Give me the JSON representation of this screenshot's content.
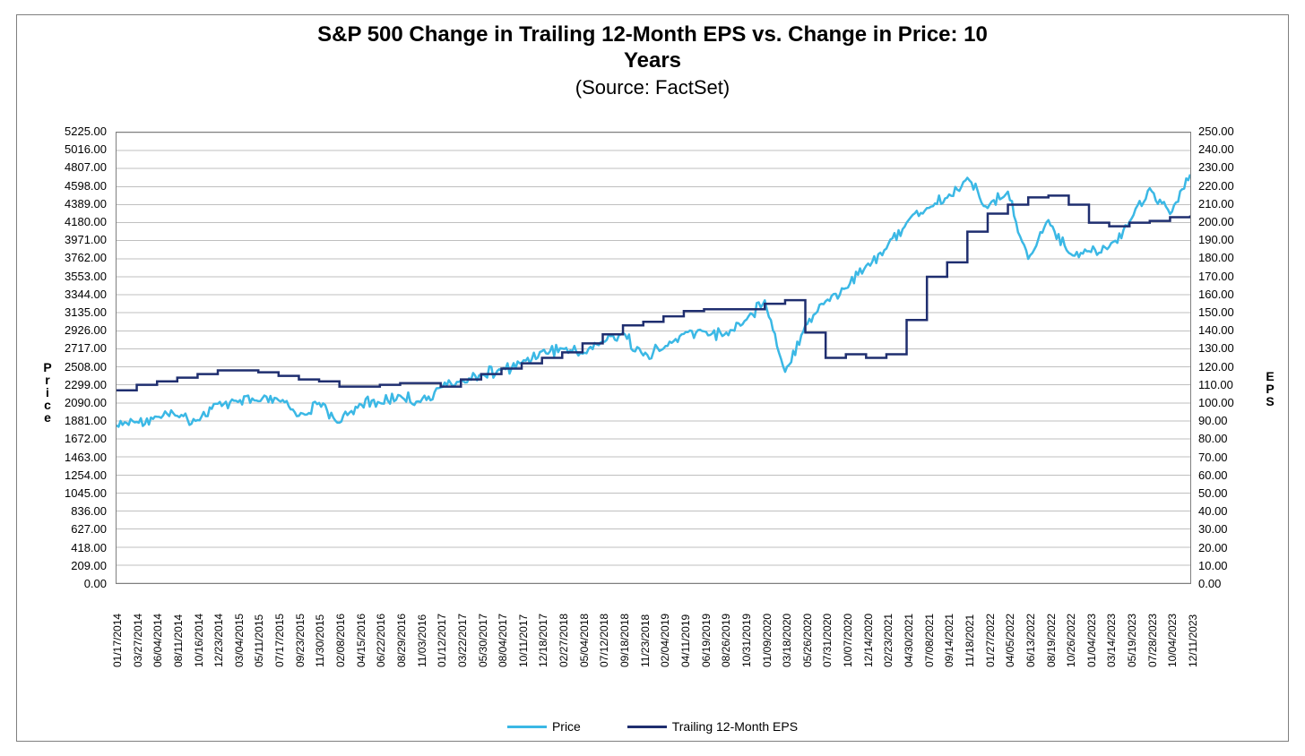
{
  "chart": {
    "type": "line-dual-axis",
    "title_line1": "S&P 500 Change in Trailing 12-Month EPS vs. Change in Price: 10",
    "title_line2": "Years",
    "subtitle": "(Source: FactSet)",
    "title_fontsize": 24,
    "title_fontweight": "bold",
    "subtitle_fontsize": 22,
    "background_color": "#ffffff",
    "border_color": "#7f7f7f",
    "grid_color": "#bfbfbf",
    "axis_label_color": "#000000",
    "tick_fontsize": 13,
    "xtick_fontsize": 12,
    "y_left": {
      "title": "Price",
      "min": 0.0,
      "max": 5225.0,
      "step": 209.0,
      "ticks": [
        "0.00",
        "209.00",
        "418.00",
        "627.00",
        "836.00",
        "1045.00",
        "1254.00",
        "1463.00",
        "1672.00",
        "1881.00",
        "2090.00",
        "2299.00",
        "2508.00",
        "2717.00",
        "2926.00",
        "3135.00",
        "3344.00",
        "3553.00",
        "3762.00",
        "3971.00",
        "4180.00",
        "4389.00",
        "4598.00",
        "4807.00",
        "5016.00",
        "5225.00"
      ]
    },
    "y_right": {
      "title": "EPS",
      "min": 0.0,
      "max": 250.0,
      "step": 10.0,
      "ticks": [
        "0.00",
        "10.00",
        "20.00",
        "30.00",
        "40.00",
        "50.00",
        "60.00",
        "70.00",
        "80.00",
        "90.00",
        "100.00",
        "110.00",
        "120.00",
        "130.00",
        "140.00",
        "150.00",
        "160.00",
        "170.00",
        "180.00",
        "190.00",
        "200.00",
        "210.00",
        "220.00",
        "230.00",
        "240.00",
        "250.00"
      ]
    },
    "x_categories": [
      "01/17/2014",
      "03/27/2014",
      "06/04/2014",
      "08/11/2014",
      "10/16/2014",
      "12/23/2014",
      "03/04/2015",
      "05/11/2015",
      "07/17/2015",
      "09/23/2015",
      "11/30/2015",
      "02/08/2016",
      "04/15/2016",
      "06/22/2016",
      "08/29/2016",
      "11/03/2016",
      "01/12/2017",
      "03/22/2017",
      "05/30/2017",
      "08/04/2017",
      "10/11/2017",
      "12/18/2017",
      "02/27/2018",
      "05/04/2018",
      "07/12/2018",
      "09/18/2018",
      "11/23/2018",
      "02/04/2019",
      "04/11/2019",
      "06/19/2019",
      "08/26/2019",
      "10/31/2019",
      "01/09/2020",
      "03/18/2020",
      "05/26/2020",
      "07/31/2020",
      "10/07/2020",
      "12/14/2020",
      "02/23/2021",
      "04/30/2021",
      "07/08/2021",
      "09/14/2021",
      "11/18/2021",
      "01/27/2022",
      "04/05/2022",
      "06/13/2022",
      "08/19/2022",
      "10/26/2022",
      "01/04/2023",
      "03/14/2023",
      "05/19/2023",
      "07/28/2023",
      "10/04/2023",
      "12/11/2023"
    ],
    "series": {
      "price": {
        "label": "Price",
        "color": "#3bb8e5",
        "line_width": 2.5,
        "axis": "left",
        "line_style": "jagged",
        "data": [
          1830,
          1870,
          1930,
          1940,
          1890,
          2080,
          2100,
          2110,
          2120,
          1940,
          2090,
          1860,
          2080,
          2090,
          2175,
          2100,
          2270,
          2350,
          2410,
          2470,
          2555,
          2690,
          2720,
          2660,
          2800,
          2900,
          2640,
          2720,
          2890,
          2920,
          2880,
          3040,
          3280,
          2450,
          2990,
          3270,
          3420,
          3680,
          3880,
          4180,
          4350,
          4470,
          4700,
          4350,
          4540,
          3760,
          4210,
          3830,
          3850,
          3900,
          4190,
          4580,
          4280,
          4740
        ]
      },
      "eps": {
        "label": "Trailing 12-Month EPS",
        "color": "#1f2e6f",
        "line_width": 2.5,
        "axis": "right",
        "line_style": "step",
        "data": [
          107,
          110,
          112,
          114,
          116,
          118,
          118,
          117,
          115,
          113,
          112,
          109,
          109,
          110,
          111,
          111,
          109,
          113,
          116,
          119,
          122,
          125,
          128,
          133,
          138,
          143,
          145,
          148,
          151,
          152,
          152,
          152,
          155,
          157,
          139,
          125,
          127,
          125,
          127,
          146,
          170,
          178,
          195,
          205,
          210,
          214,
          215,
          210,
          200,
          198,
          200,
          201,
          203,
          204
        ]
      }
    },
    "legend": {
      "position": "bottom-center",
      "items": [
        {
          "label": "Price",
          "color": "#3bb8e5"
        },
        {
          "label": "Trailing 12-Month EPS",
          "color": "#1f2e6f"
        }
      ]
    }
  }
}
